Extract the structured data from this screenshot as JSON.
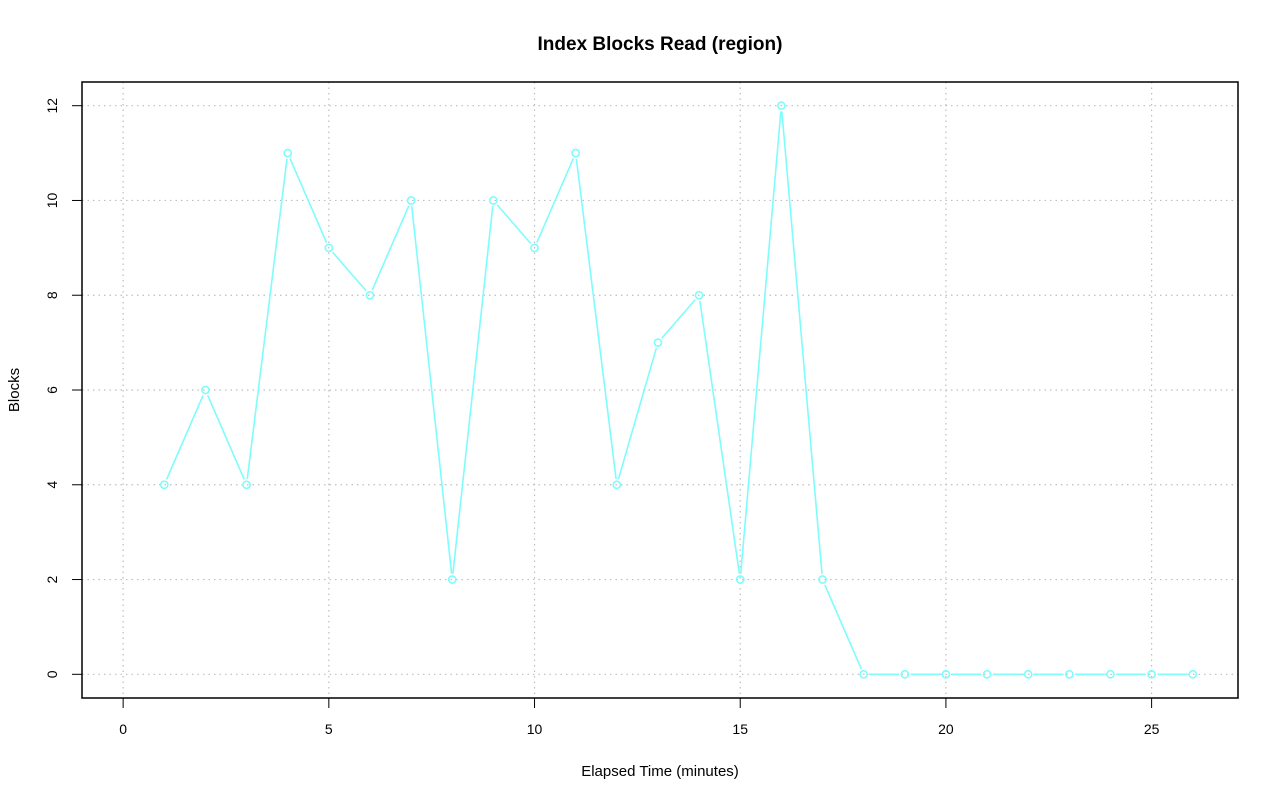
{
  "chart_data": {
    "type": "line",
    "title": "Index Blocks Read (region)",
    "xlabel": "Elapsed Time (minutes)",
    "ylabel": "Blocks",
    "xlim": [
      -1,
      27.1
    ],
    "ylim": [
      -0.5,
      12.5
    ],
    "x_ticks": [
      0,
      5,
      10,
      15,
      20,
      25
    ],
    "y_ticks": [
      0,
      2,
      4,
      6,
      8,
      10,
      12
    ],
    "grid": true,
    "grid_color": "#bebebe",
    "legend": "none",
    "series": [
      {
        "color": "#7ffcfc",
        "marker": "open-circle",
        "x": [
          1,
          2,
          3,
          4,
          5,
          6,
          7,
          8,
          9,
          10,
          11,
          12,
          13,
          14,
          15,
          16,
          17,
          18,
          19,
          20,
          21,
          22,
          23,
          24,
          25,
          26
        ],
        "values": [
          4,
          6,
          4,
          11,
          9,
          8,
          10,
          2,
          10,
          9,
          11,
          4,
          7,
          8,
          2,
          12,
          2,
          0,
          0,
          0,
          0,
          0,
          0,
          0,
          0,
          0
        ]
      }
    ]
  }
}
